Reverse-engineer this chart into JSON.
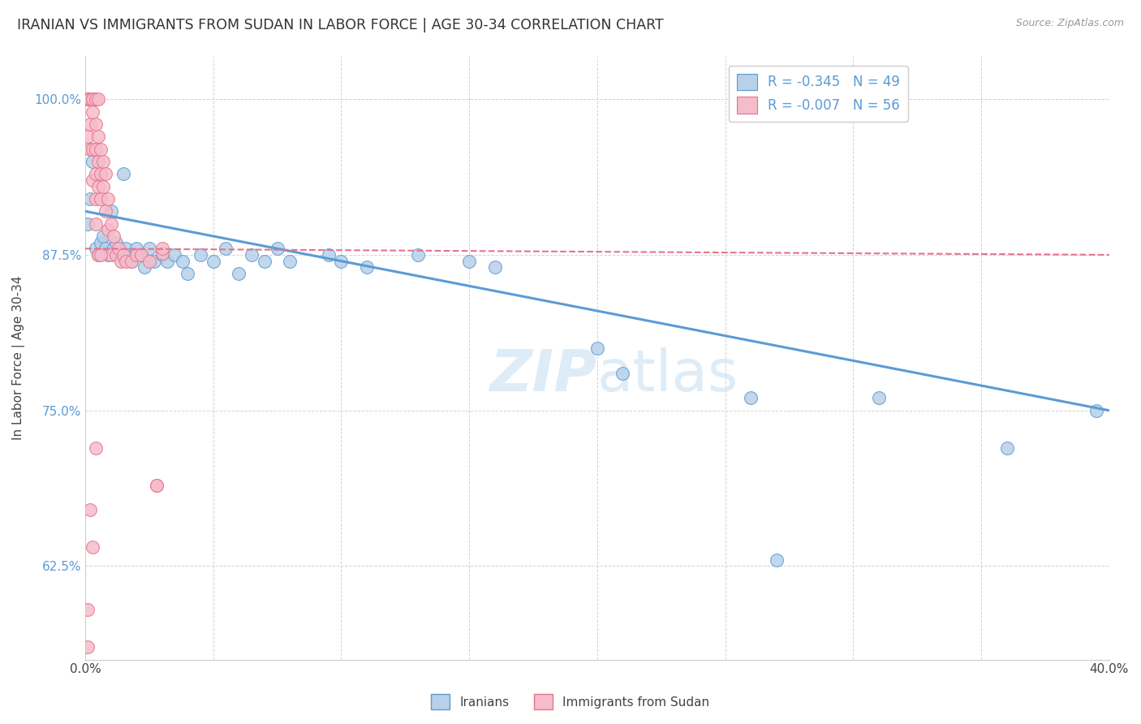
{
  "title": "IRANIAN VS IMMIGRANTS FROM SUDAN IN LABOR FORCE | AGE 30-34 CORRELATION CHART",
  "source": "Source: ZipAtlas.com",
  "ylabel": "In Labor Force | Age 30-34",
  "x_min": 0.0,
  "x_max": 0.4,
  "y_min": 0.55,
  "y_max": 1.035,
  "x_ticks": [
    0.0,
    0.05,
    0.1,
    0.15,
    0.2,
    0.25,
    0.3,
    0.35,
    0.4
  ],
  "x_ticklabels": [
    "0.0%",
    "",
    "",
    "",
    "",
    "",
    "",
    "",
    "40.0%"
  ],
  "y_ticks": [
    0.625,
    0.75,
    0.875,
    1.0
  ],
  "y_ticklabels": [
    "62.5%",
    "75.0%",
    "87.5%",
    "100.0%"
  ],
  "legend_label1": "Iranians",
  "legend_label2": "Immigrants from Sudan",
  "r1": -0.345,
  "n1": 49,
  "r2": -0.007,
  "n2": 56,
  "color_blue": "#b8d0e8",
  "color_blue_line": "#5b9bd5",
  "color_pink": "#f5bccb",
  "color_pink_line": "#e8728a",
  "color_ytick": "#5b9bd5",
  "watermark_color": "#d0e4f5",
  "iran_x": [
    0.001,
    0.002,
    0.003,
    0.004,
    0.005,
    0.006,
    0.007,
    0.008,
    0.009,
    0.01,
    0.011,
    0.012,
    0.013,
    0.015,
    0.016,
    0.017,
    0.018,
    0.019,
    0.02,
    0.022,
    0.023,
    0.025,
    0.027,
    0.03,
    0.032,
    0.035,
    0.038,
    0.04,
    0.045,
    0.05,
    0.055,
    0.06,
    0.065,
    0.07,
    0.075,
    0.08,
    0.095,
    0.1,
    0.11,
    0.13,
    0.15,
    0.16,
    0.2,
    0.21,
    0.26,
    0.27,
    0.31,
    0.36,
    0.395
  ],
  "iran_y": [
    0.9,
    0.92,
    0.95,
    0.88,
    0.875,
    0.885,
    0.89,
    0.88,
    0.875,
    0.91,
    0.88,
    0.885,
    0.875,
    0.94,
    0.88,
    0.875,
    0.87,
    0.875,
    0.88,
    0.875,
    0.865,
    0.88,
    0.87,
    0.875,
    0.87,
    0.875,
    0.87,
    0.86,
    0.875,
    0.87,
    0.88,
    0.86,
    0.875,
    0.87,
    0.88,
    0.87,
    0.875,
    0.87,
    0.865,
    0.875,
    0.87,
    0.865,
    0.8,
    0.78,
    0.76,
    0.63,
    0.76,
    0.72,
    0.75
  ],
  "sudan_x": [
    0.001,
    0.001,
    0.001,
    0.001,
    0.001,
    0.002,
    0.002,
    0.002,
    0.002,
    0.003,
    0.003,
    0.003,
    0.003,
    0.003,
    0.004,
    0.004,
    0.004,
    0.004,
    0.004,
    0.004,
    0.005,
    0.005,
    0.005,
    0.005,
    0.006,
    0.006,
    0.006,
    0.007,
    0.007,
    0.008,
    0.008,
    0.009,
    0.009,
    0.01,
    0.01,
    0.011,
    0.012,
    0.013,
    0.014,
    0.015,
    0.016,
    0.018,
    0.02,
    0.022,
    0.025,
    0.028,
    0.03,
    0.03,
    0.001,
    0.001,
    0.002,
    0.003,
    0.004,
    0.005,
    0.006,
    0.028
  ],
  "sudan_y": [
    1.0,
    1.0,
    1.0,
    1.0,
    0.97,
    1.0,
    1.0,
    0.98,
    0.96,
    1.0,
    1.0,
    0.99,
    0.96,
    0.935,
    1.0,
    0.98,
    0.96,
    0.94,
    0.92,
    0.9,
    1.0,
    0.97,
    0.95,
    0.93,
    0.96,
    0.94,
    0.92,
    0.95,
    0.93,
    0.94,
    0.91,
    0.92,
    0.895,
    0.9,
    0.875,
    0.89,
    0.875,
    0.88,
    0.87,
    0.875,
    0.87,
    0.87,
    0.875,
    0.875,
    0.87,
    0.69,
    0.876,
    0.88,
    0.56,
    0.59,
    0.67,
    0.64,
    0.72,
    0.875,
    0.875,
    0.69
  ],
  "iran_line_x0": 0.0,
  "iran_line_y0": 0.91,
  "iran_line_x1": 0.4,
  "iran_line_y1": 0.75,
  "sudan_line_x0": 0.0,
  "sudan_line_y0": 0.88,
  "sudan_line_x1": 0.4,
  "sudan_line_y1": 0.875
}
